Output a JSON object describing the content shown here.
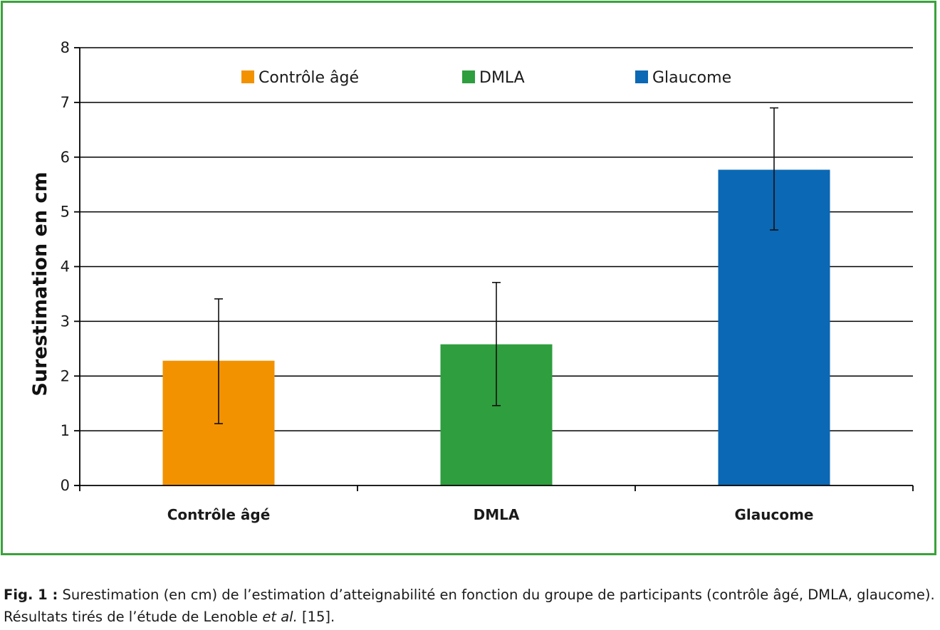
{
  "chart_data": {
    "type": "bar",
    "ylabel": "Surestimation en cm",
    "xlabel": "",
    "ylim": [
      0,
      8
    ],
    "yticks": [
      "0",
      "1",
      "2",
      "3",
      "4",
      "5",
      "6",
      "7",
      "8"
    ],
    "categories": [
      "Contrôle âgé",
      "DMLA",
      "Glaucome"
    ],
    "values": [
      2.28,
      2.58,
      5.77
    ],
    "error_low": [
      1.13,
      1.46,
      4.67
    ],
    "error_high": [
      3.41,
      3.71,
      6.9
    ],
    "colors": [
      "#f39200",
      "#2e9e3e",
      "#0b68b4"
    ],
    "legend": [
      "Contrôle âgé",
      "DMLA",
      "Glaucome"
    ],
    "legend_position": "top",
    "grid": true
  },
  "frame_color": "#3aa23a",
  "caption": {
    "fig_num": "Fig. 1 :",
    "text_before": " Surestimation (en cm) de l’estimation d’atteignabilité en fonction du groupe de participants (contrôle âgé, DMLA, glaucome). Résultats tirés de l’étude de Lenoble ",
    "etal": "et al.",
    "text_after": " [15]."
  }
}
